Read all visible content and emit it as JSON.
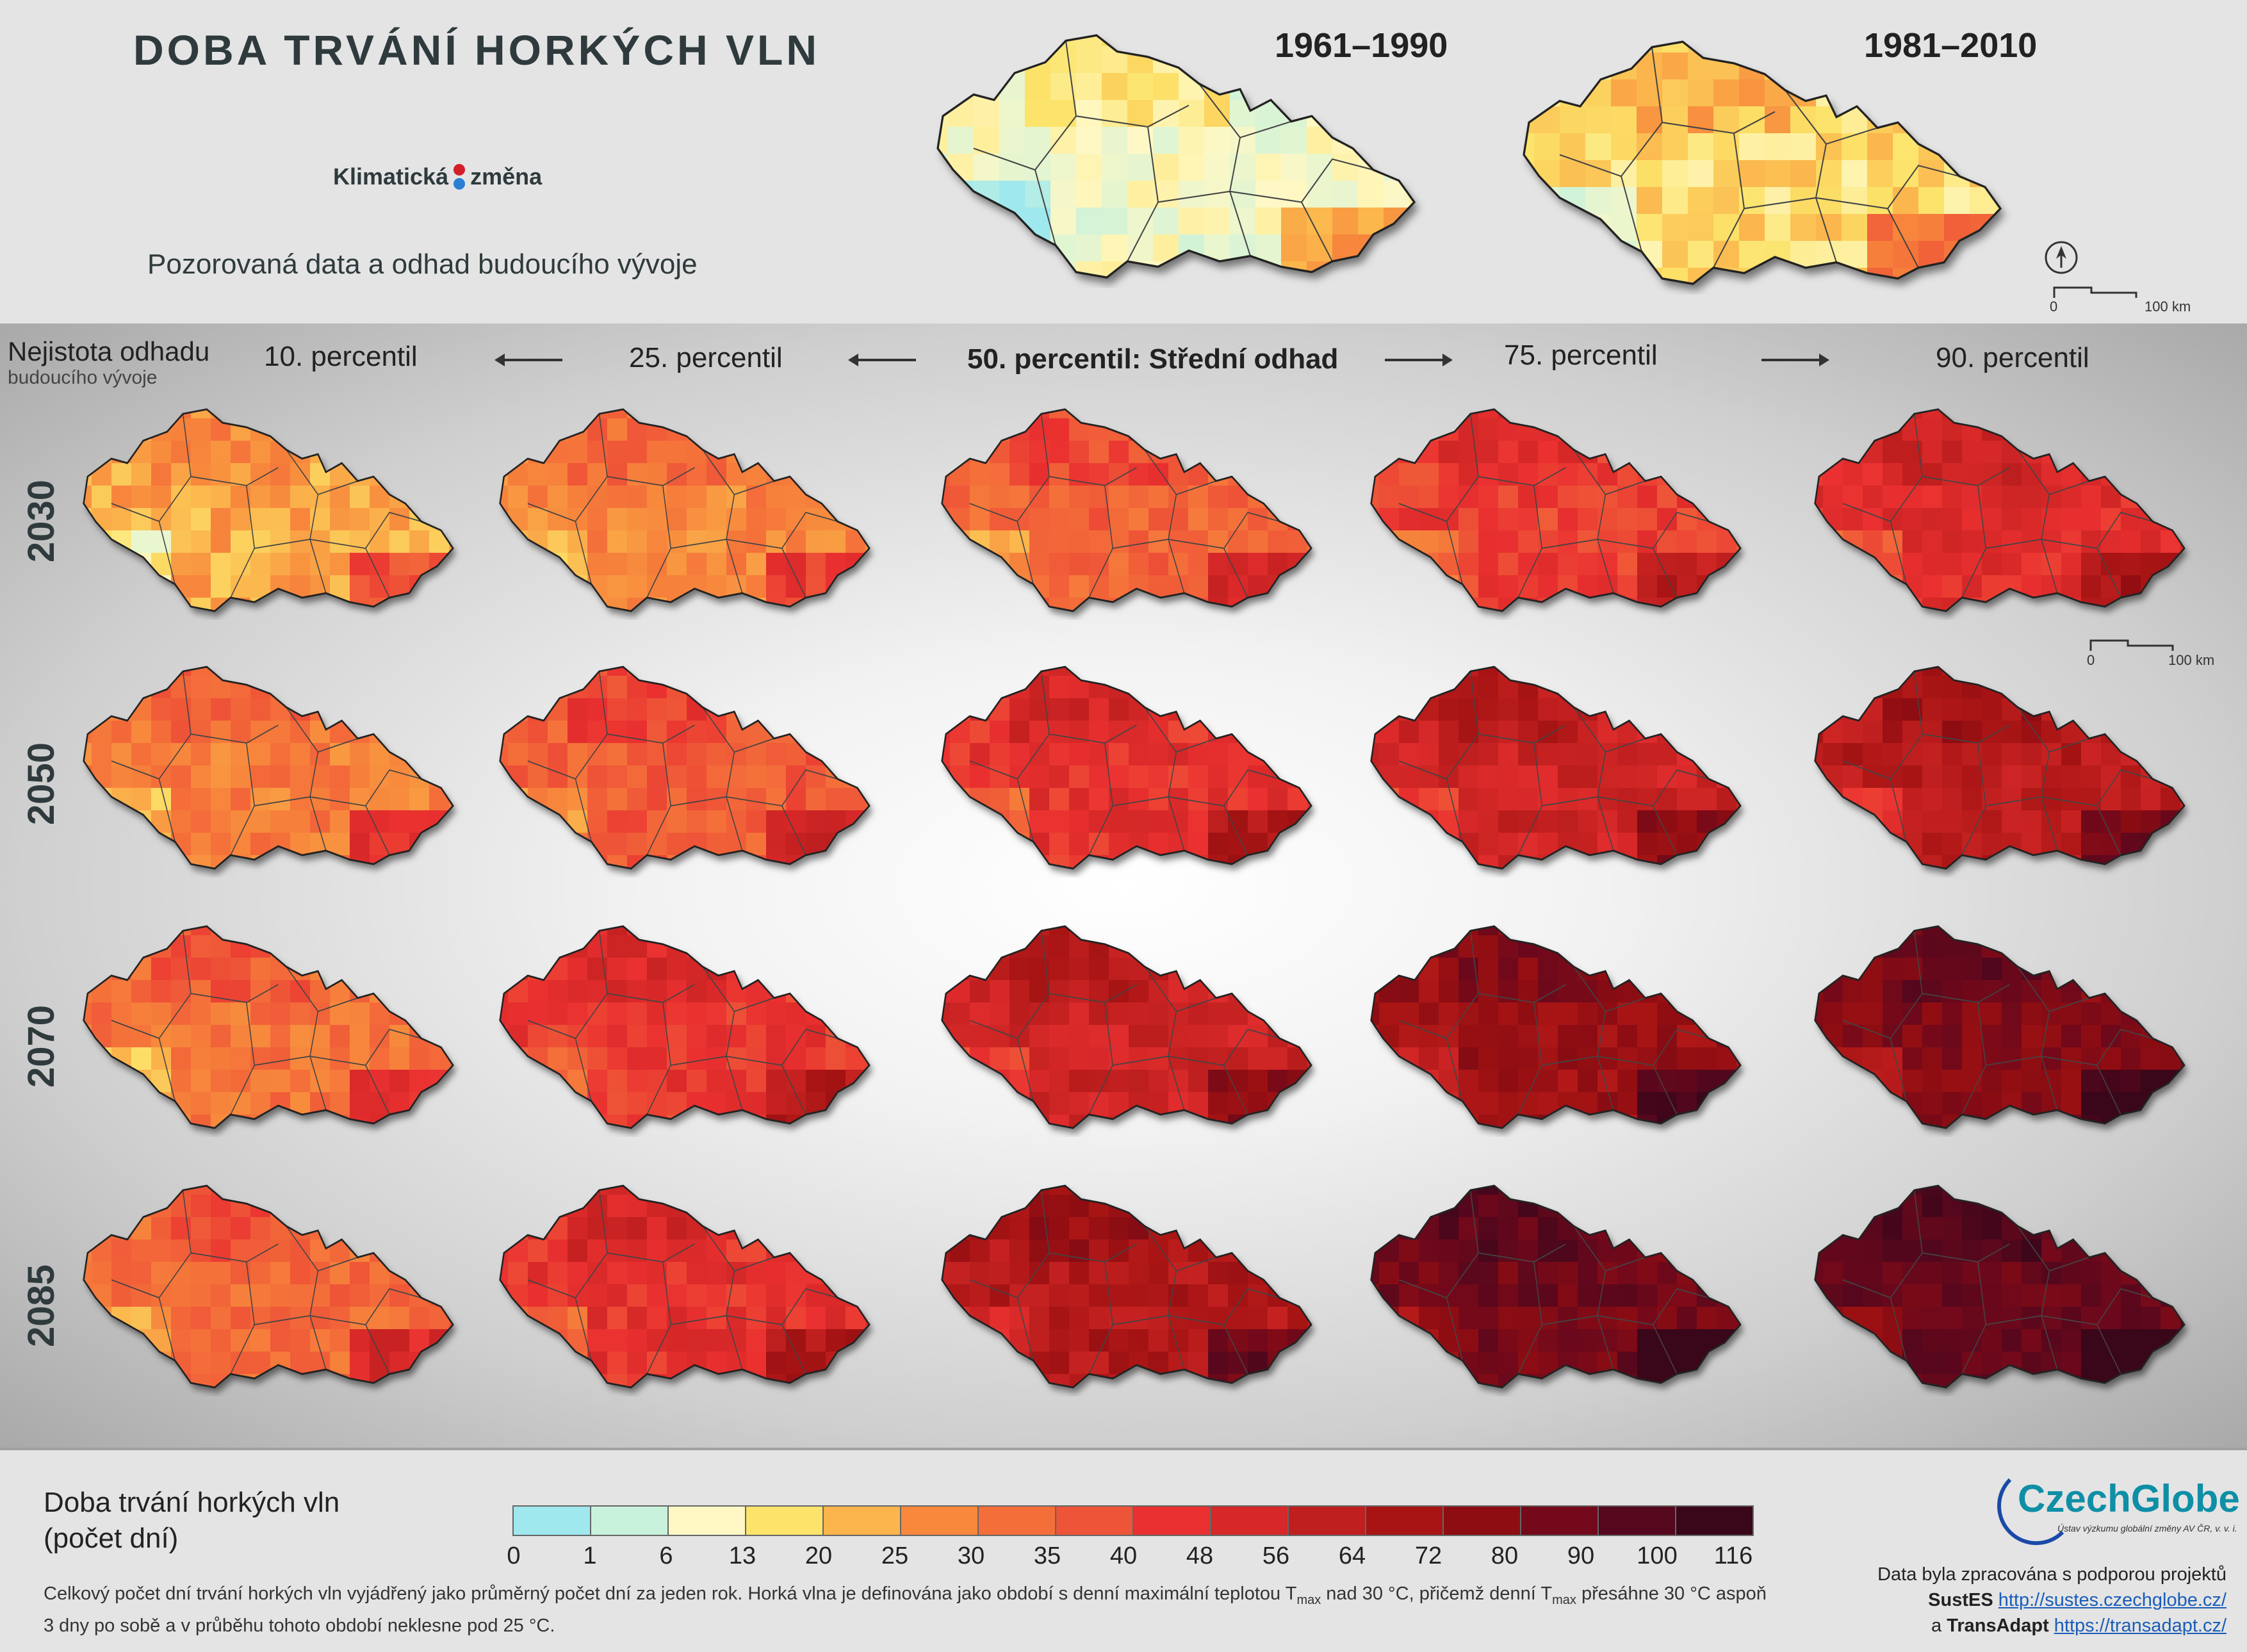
{
  "header": {
    "title": "DOBA TRVÁNÍ HORKÝCH VLN",
    "logo_text_1": "Klimatická",
    "logo_text_2": "změna",
    "subtitle": "Pozorovaná data a odhad budoucího vývoje",
    "period_1": "1961–1990",
    "period_2": "1981–2010",
    "scale_zero": "0",
    "scale_label": "100 km"
  },
  "uncertainty": {
    "line1": "Nejistota odhadu",
    "line2": "budoucího vývoje"
  },
  "columns": [
    "10. percentil",
    "25. percentil",
    "50. percentil: Střední odhad",
    "75. percentil",
    "90. percentil"
  ],
  "years": [
    "2030",
    "2050",
    "2070",
    "2085"
  ],
  "map_levels": {
    "observed": [
      0.1,
      0.22
    ],
    "grid": [
      [
        0.3,
        0.36,
        0.44,
        0.52,
        0.58
      ],
      [
        0.38,
        0.46,
        0.56,
        0.64,
        0.7
      ],
      [
        0.4,
        0.54,
        0.64,
        0.78,
        0.84
      ],
      [
        0.42,
        0.56,
        0.72,
        0.88,
        0.94
      ]
    ]
  },
  "legend": {
    "title_1": "Doba trvání horkých vln",
    "title_2": "(počet dní)",
    "ticks": [
      "0",
      "1",
      "6",
      "13",
      "20",
      "25",
      "30",
      "35",
      "40",
      "48",
      "56",
      "64",
      "72",
      "80",
      "90",
      "100",
      "116"
    ],
    "colors": [
      "#9fe8ee",
      "#c9f2dc",
      "#fff8c4",
      "#fce36a",
      "#fbb54c",
      "#f7883c",
      "#f46e3a",
      "#ee5437",
      "#ea3030",
      "#d62828",
      "#c01f1f",
      "#a81414",
      "#8d0d12",
      "#73091a",
      "#55071d",
      "#3a061a"
    ]
  },
  "description": {
    "part1": "Celkový počet dní trvání horkých vln vyjádřený jako průměrný počet dní za jeden rok. Horká vlna je definována jako období s denní maximální teplotou T",
    "sub": "max",
    "part2": " nad 30 °C, přičemž denní T",
    "part3": " přesáhne 30 °C aspoň 3 dny po sobě a v průběhu tohoto období neklesne pod 25 °C."
  },
  "credits": {
    "brand": "CzechGlobe",
    "brand_sub": "Ústav výzkumu globální změny AV ČR, v. v. i.",
    "line1": "Data byla zpracována s podporou projektů",
    "proj1": "SustES",
    "url1": "http://sustes.czechglobe.cz/",
    "and": "a",
    "proj2": "TransAdapt",
    "url2": "https://transadapt.cz/"
  }
}
